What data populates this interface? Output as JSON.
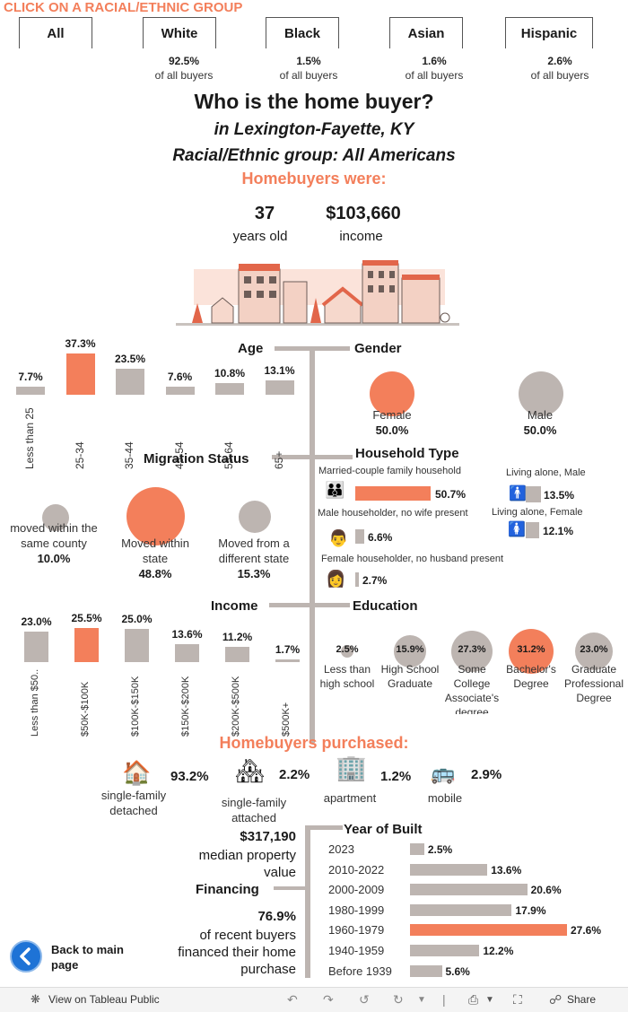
{
  "header": {
    "prompt": "CLICK ON A RACIAL/ETHNIC GROUP"
  },
  "groups": [
    {
      "label": "All",
      "pct": "",
      "sub": ""
    },
    {
      "label": "White",
      "pct": "92.5%",
      "sub": "of all buyers"
    },
    {
      "label": "Black",
      "pct": "1.5%",
      "sub": "of all buyers"
    },
    {
      "label": "Asian",
      "pct": "1.6%",
      "sub": "of all buyers"
    },
    {
      "label": "Hispanic",
      "pct": "2.6%",
      "sub": "of all buyers"
    }
  ],
  "title": {
    "main": "Who is the home buyer?",
    "place": "in Lexington-Fayette, KY",
    "group": "Racial/Ethnic group: All Americans",
    "were": "Homebuyers were:"
  },
  "summary": {
    "age": "37",
    "age_label": "years old",
    "income": "$103,660",
    "income_label": "income"
  },
  "age": {
    "title": "Age",
    "items": [
      {
        "label": "Less than 25",
        "value": "7.7%",
        "v": 7.7
      },
      {
        "label": "25-34",
        "value": "37.3%",
        "v": 37.3,
        "hl": true
      },
      {
        "label": "35-44",
        "value": "23.5%",
        "v": 23.5
      },
      {
        "label": "45-54",
        "value": "7.6%",
        "v": 7.6
      },
      {
        "label": "55-64",
        "value": "10.8%",
        "v": 10.8
      },
      {
        "label": "65+",
        "value": "13.1%",
        "v": 13.1
      }
    ]
  },
  "gender": {
    "title": "Gender",
    "female_label": "Female",
    "female_value": "50.0%",
    "male_label": "Male",
    "male_value": "50.0%"
  },
  "migration": {
    "title": "Migration Status",
    "same_county": "moved within the same county",
    "same_county_value": "10.0%",
    "within_state": "Moved within state",
    "within_state_value": "48.8%",
    "diff_state": "Moved from a different state",
    "diff_state_value": "15.3%"
  },
  "household": {
    "title": "Household Type",
    "married": "Married-couple family household",
    "married_value": "50.7%",
    "male_no_wife": "Male householder, no wife present",
    "male_no_wife_value": "6.6%",
    "female_no_husband": "Female householder, no husband present",
    "female_no_husband_value": "2.7%",
    "alone_male": "Living alone, Male",
    "alone_male_value": "13.5%",
    "alone_female": "Living alone, Female",
    "alone_female_value": "12.1%"
  },
  "income": {
    "title": "Income",
    "items": [
      {
        "label": "Less than $50..",
        "value": "23.0%",
        "v": 23.0
      },
      {
        "label": "$50K-$100K",
        "value": "25.5%",
        "v": 25.5,
        "hl": true
      },
      {
        "label": "$100K-$150K",
        "value": "25.0%",
        "v": 25.0
      },
      {
        "label": "$150K-$200K",
        "value": "13.6%",
        "v": 13.6
      },
      {
        "label": "$200K-$500K",
        "value": "11.2%",
        "v": 11.2
      },
      {
        "label": "$500K+",
        "value": "1.7%",
        "v": 1.7
      }
    ]
  },
  "education": {
    "title": "Education",
    "items": [
      {
        "label": "Less than high school",
        "value": "2.5%",
        "v": 2.5
      },
      {
        "label": "High School Graduate",
        "value": "15.9%",
        "v": 15.9
      },
      {
        "label": "Some College Associate's degree",
        "value": "27.3%",
        "v": 27.3
      },
      {
        "label": "Bachelor's Degree",
        "value": "31.2%",
        "v": 31.2,
        "hl": true
      },
      {
        "label": "Graduate Professional Degree",
        "value": "23.0%",
        "v": 23.0
      }
    ]
  },
  "purchased": {
    "title": "Homebuyers purchased:",
    "items": [
      {
        "label": "single-family detached",
        "value": "93.2%"
      },
      {
        "label": "single-family attached",
        "value": "2.2%"
      },
      {
        "label": "apartment",
        "value": "1.2%"
      },
      {
        "label": "mobile",
        "value": "2.9%"
      }
    ]
  },
  "property": {
    "value": "$317,190",
    "label": "median property value"
  },
  "financing": {
    "title": "Financing",
    "value": "76.9%",
    "label": "of recent buyers financed their home purchase"
  },
  "year_built": {
    "title": "Year of Built",
    "items": [
      {
        "label": "2023",
        "value": "2.5%",
        "v": 2.5
      },
      {
        "label": "2010-2022",
        "value": "13.6%",
        "v": 13.6
      },
      {
        "label": "2000-2009",
        "value": "20.6%",
        "v": 20.6
      },
      {
        "label": "1980-1999",
        "value": "17.9%",
        "v": 17.9
      },
      {
        "label": "1960-1979",
        "value": "27.6%",
        "v": 27.6,
        "hl": true
      },
      {
        "label": "1940-1959",
        "value": "12.2%",
        "v": 12.2
      },
      {
        "label": "Before 1939",
        "value": "5.6%",
        "v": 5.6
      }
    ]
  },
  "back": {
    "label": "Back to main page"
  },
  "toolbar": {
    "view": "View on Tableau Public",
    "share": "Share"
  },
  "colors": {
    "accent": "#f37f5b",
    "neutral": "#bdb5b1"
  }
}
